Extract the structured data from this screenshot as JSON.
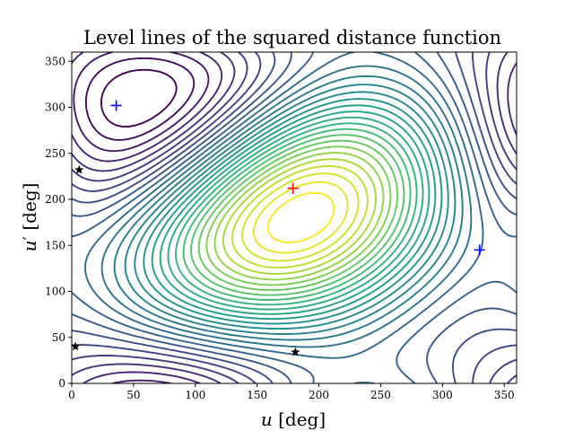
{
  "chart_data": {
    "type": "contour",
    "title": "Level lines of the squared distance function",
    "xlabel": {
      "base": "u",
      "unit": " [deg]"
    },
    "ylabel": {
      "base": "u",
      "prime": "′",
      "unit": " [deg]"
    },
    "xlim": [
      0,
      360
    ],
    "ylim": [
      0,
      360
    ],
    "xticks": [
      "0",
      "50",
      "100",
      "150",
      "200",
      "250",
      "300",
      "350"
    ],
    "yticks": [
      "0",
      "50",
      "100",
      "150",
      "200",
      "250",
      "300",
      "350"
    ],
    "xtick_values": [
      0,
      50,
      100,
      150,
      200,
      250,
      300,
      350
    ],
    "ytick_values": [
      0,
      50,
      100,
      150,
      200,
      250,
      300,
      350
    ],
    "grid": false,
    "colormap": "viridis",
    "contour_levels": 30,
    "markers": [
      {
        "kind": "maximum",
        "symbol": "plus",
        "color": "#ff0000",
        "x": 179,
        "y": 212
      },
      {
        "kind": "minimum",
        "symbol": "plus",
        "color": "#0000ff",
        "x": 36,
        "y": 302
      },
      {
        "kind": "minimum",
        "symbol": "plus",
        "color": "#0000ff",
        "x": 330,
        "y": 145
      },
      {
        "kind": "saddle",
        "symbol": "star",
        "color": "#000000",
        "x": 6,
        "y": 232
      },
      {
        "kind": "saddle",
        "symbol": "star",
        "color": "#000000",
        "x": 3,
        "y": 40
      },
      {
        "kind": "saddle",
        "symbol": "star",
        "color": "#000000",
        "x": 181,
        "y": 34
      }
    ]
  }
}
